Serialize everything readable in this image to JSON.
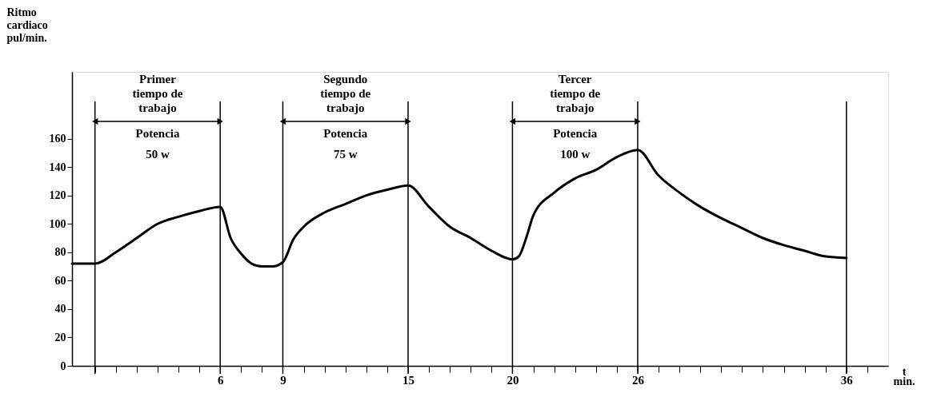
{
  "chart_data": {
    "type": "line",
    "ylabel": "Ritmo\ncardiaco\npul/min.",
    "xlabel": "t\nmin.",
    "xlim": [
      -1.1,
      38
    ],
    "ylim": [
      0,
      207
    ],
    "xticks": [
      {
        "value": 0,
        "label": null
      },
      {
        "value": 1,
        "label": null
      },
      {
        "value": 2,
        "label": null
      },
      {
        "value": 3,
        "label": null
      },
      {
        "value": 4,
        "label": null
      },
      {
        "value": 5,
        "label": null
      },
      6,
      {
        "value": 7,
        "label": null
      },
      {
        "value": 8,
        "label": null
      },
      9,
      {
        "value": 10,
        "label": null
      },
      {
        "value": 11,
        "label": null
      },
      {
        "value": 12,
        "label": null
      },
      {
        "value": 13,
        "label": null
      },
      {
        "value": 14,
        "label": null
      },
      15,
      {
        "value": 16,
        "label": null
      },
      {
        "value": 17,
        "label": null
      },
      {
        "value": 18,
        "label": null
      },
      {
        "value": 19,
        "label": null
      },
      20,
      {
        "value": 21,
        "label": null
      },
      {
        "value": 22,
        "label": null
      },
      {
        "value": 23,
        "label": null
      },
      {
        "value": 24,
        "label": null
      },
      {
        "value": 25,
        "label": null
      },
      26,
      {
        "value": 27,
        "label": null
      },
      {
        "value": 28,
        "label": null
      },
      {
        "value": 29,
        "label": null
      },
      {
        "value": 30,
        "label": null
      },
      {
        "value": 31,
        "label": null
      },
      {
        "value": 32,
        "label": null
      },
      {
        "value": 33,
        "label": null
      },
      {
        "value": 34,
        "label": null
      },
      {
        "value": 35,
        "label": null
      },
      36,
      {
        "value": 37,
        "label": null
      }
    ],
    "yticks": [
      0,
      20,
      40,
      60,
      80,
      100,
      120,
      140,
      160
    ],
    "grid": false,
    "marker": "none",
    "line_style": "solid",
    "series": [
      {
        "color": "#000000",
        "x": [
          -1.1,
          0,
          1,
          2,
          3,
          4,
          5,
          6,
          6.5,
          7,
          7.5,
          8,
          8.5,
          9,
          9.5,
          10,
          11,
          12,
          13,
          14,
          15,
          16,
          17,
          18,
          19,
          20,
          20.3,
          20.7,
          21,
          22,
          23,
          24,
          25,
          26,
          27,
          28,
          29,
          30,
          31,
          32,
          33,
          34,
          35,
          36
        ],
        "values": [
          72,
          72,
          80,
          90,
          100,
          105,
          109,
          112,
          90,
          79,
          72,
          70,
          70,
          73,
          89,
          98,
          108,
          114,
          120,
          124,
          127,
          112,
          98,
          90,
          81,
          75,
          77,
          92,
          106,
          122,
          132,
          138,
          147,
          152,
          134,
          122,
          112,
          104,
          97,
          90,
          85,
          81,
          77,
          76
        ]
      }
    ],
    "ref_lines": [
      {
        "axis": "x",
        "value": 0
      },
      {
        "axis": "x",
        "value": 6
      },
      {
        "axis": "x",
        "value": 9
      },
      {
        "axis": "x",
        "value": 15
      },
      {
        "axis": "x",
        "value": 20
      },
      {
        "axis": "x",
        "value": 26
      },
      {
        "axis": "x",
        "value": 36
      }
    ],
    "annotations": [
      "Primer\ntiempo de\ntrabajo",
      "Potencia\n50 w",
      "Segundo\ntiempo de\ntrabajo",
      "Potencia\n75 w",
      "Tercer\ntiempo de\ntrabajo",
      "Potencia\n100 w"
    ]
  }
}
